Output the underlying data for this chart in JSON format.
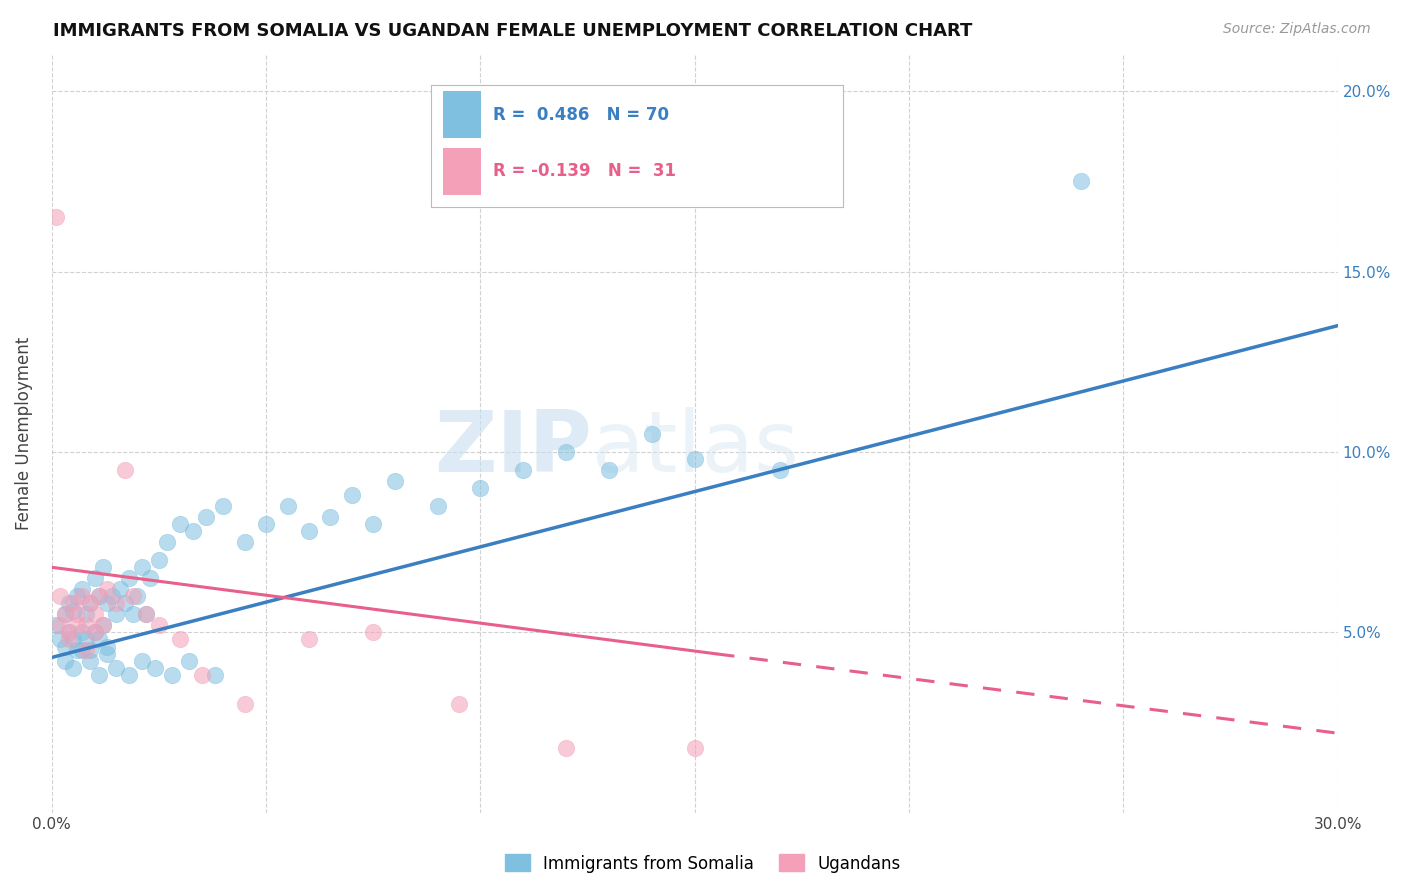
{
  "title": "IMMIGRANTS FROM SOMALIA VS UGANDAN FEMALE UNEMPLOYMENT CORRELATION CHART",
  "source": "Source: ZipAtlas.com",
  "ylabel": "Female Unemployment",
  "xlim": [
    0.0,
    0.3
  ],
  "ylim": [
    0.0,
    0.21
  ],
  "yticks": [
    0.05,
    0.1,
    0.15,
    0.2
  ],
  "ytick_labels": [
    "5.0%",
    "10.0%",
    "15.0%",
    "20.0%"
  ],
  "xticks": [
    0.0,
    0.05,
    0.1,
    0.15,
    0.2,
    0.25,
    0.3
  ],
  "color_blue": "#7fbfdf",
  "color_pink": "#f4a0b8",
  "line_blue": "#3a7fc1",
  "line_pink": "#e8608a",
  "watermark_zip": "ZIP",
  "watermark_atlas": "atlas",
  "blue_line_x": [
    0.0,
    0.3
  ],
  "blue_line_y": [
    0.043,
    0.135
  ],
  "pink_line_x": [
    0.0,
    0.3
  ],
  "pink_line_y": [
    0.068,
    0.022
  ],
  "blue_scatter_x": [
    0.001,
    0.002,
    0.003,
    0.003,
    0.004,
    0.004,
    0.005,
    0.005,
    0.006,
    0.006,
    0.007,
    0.007,
    0.008,
    0.008,
    0.009,
    0.009,
    0.01,
    0.01,
    0.011,
    0.011,
    0.012,
    0.012,
    0.013,
    0.013,
    0.014,
    0.015,
    0.016,
    0.017,
    0.018,
    0.019,
    0.02,
    0.021,
    0.022,
    0.023,
    0.025,
    0.027,
    0.03,
    0.033,
    0.036,
    0.04,
    0.045,
    0.05,
    0.055,
    0.06,
    0.065,
    0.07,
    0.075,
    0.08,
    0.09,
    0.1,
    0.11,
    0.12,
    0.13,
    0.14,
    0.15,
    0.17,
    0.003,
    0.005,
    0.007,
    0.009,
    0.011,
    0.013,
    0.015,
    0.018,
    0.021,
    0.024,
    0.028,
    0.032,
    0.038,
    0.24
  ],
  "blue_scatter_y": [
    0.052,
    0.048,
    0.046,
    0.055,
    0.05,
    0.058,
    0.048,
    0.056,
    0.045,
    0.06,
    0.05,
    0.062,
    0.048,
    0.055,
    0.045,
    0.058,
    0.05,
    0.065,
    0.048,
    0.06,
    0.052,
    0.068,
    0.046,
    0.058,
    0.06,
    0.055,
    0.062,
    0.058,
    0.065,
    0.055,
    0.06,
    0.068,
    0.055,
    0.065,
    0.07,
    0.075,
    0.08,
    0.078,
    0.082,
    0.085,
    0.075,
    0.08,
    0.085,
    0.078,
    0.082,
    0.088,
    0.08,
    0.092,
    0.085,
    0.09,
    0.095,
    0.1,
    0.095,
    0.105,
    0.098,
    0.095,
    0.042,
    0.04,
    0.045,
    0.042,
    0.038,
    0.044,
    0.04,
    0.038,
    0.042,
    0.04,
    0.038,
    0.042,
    0.038,
    0.175
  ],
  "pink_scatter_x": [
    0.001,
    0.002,
    0.002,
    0.003,
    0.004,
    0.005,
    0.006,
    0.007,
    0.008,
    0.009,
    0.01,
    0.011,
    0.012,
    0.013,
    0.015,
    0.017,
    0.019,
    0.022,
    0.025,
    0.03,
    0.035,
    0.045,
    0.06,
    0.075,
    0.095,
    0.12,
    0.15,
    0.004,
    0.006,
    0.008,
    0.01
  ],
  "pink_scatter_y": [
    0.165,
    0.06,
    0.052,
    0.055,
    0.05,
    0.058,
    0.055,
    0.06,
    0.052,
    0.058,
    0.055,
    0.06,
    0.052,
    0.062,
    0.058,
    0.095,
    0.06,
    0.055,
    0.052,
    0.048,
    0.038,
    0.03,
    0.048,
    0.05,
    0.03,
    0.018,
    0.018,
    0.048,
    0.052,
    0.045,
    0.05
  ]
}
